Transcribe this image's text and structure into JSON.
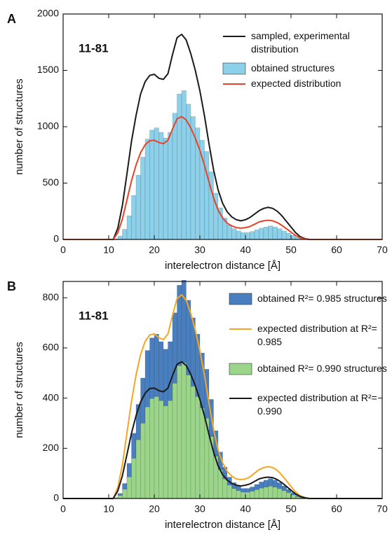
{
  "chart_data": [
    {
      "type": "histogram",
      "panel_label": "A",
      "annotation": "11-81",
      "x_label": "interelectron distance [Å]",
      "y_label": "number of structures",
      "xlim": [
        0,
        70
      ],
      "xticks": [
        0,
        10,
        20,
        30,
        40,
        50,
        60,
        70
      ],
      "ylim": [
        0,
        2000
      ],
      "yticks": [
        0,
        500,
        1000,
        1500,
        2000
      ],
      "bins": [
        11,
        12,
        13,
        14,
        15,
        16,
        17,
        18,
        19,
        20,
        21,
        22,
        23,
        24,
        25,
        26,
        27,
        28,
        29,
        30,
        31,
        32,
        33,
        34,
        35,
        36,
        37,
        38,
        39,
        40,
        41,
        42,
        43,
        44,
        45,
        46,
        47,
        48,
        49,
        50,
        51,
        52,
        53
      ],
      "x": [
        0,
        10,
        11,
        12,
        13,
        14,
        15,
        16,
        17,
        18,
        19,
        20,
        21,
        22,
        23,
        24,
        25,
        26,
        27,
        28,
        29,
        30,
        31,
        32,
        33,
        34,
        35,
        36,
        37,
        38,
        39,
        40,
        41,
        42,
        43,
        44,
        45,
        46,
        47,
        48,
        49,
        50,
        51,
        52,
        53,
        54,
        60,
        70
      ],
      "series": [
        {
          "name": "sampled, experimental distribution",
          "kind": "line",
          "color": "#1a1a1a",
          "values": [
            0,
            0,
            0,
            100,
            300,
            580,
            870,
            1100,
            1290,
            1400,
            1455,
            1465,
            1430,
            1420,
            1470,
            1640,
            1790,
            1820,
            1770,
            1650,
            1500,
            1320,
            1100,
            850,
            620,
            440,
            320,
            245,
            200,
            175,
            165,
            175,
            195,
            225,
            255,
            275,
            285,
            275,
            250,
            210,
            160,
            110,
            60,
            25,
            8,
            0,
            0,
            0
          ]
        },
        {
          "name": "obtained structures",
          "kind": "histogram",
          "color": "#8dd0ea",
          "values": [
            5,
            30,
            90,
            210,
            390,
            570,
            730,
            890,
            970,
            990,
            950,
            900,
            950,
            1120,
            1290,
            1320,
            1200,
            1090,
            990,
            880,
            780,
            600,
            410,
            280,
            190,
            130,
            95,
            75,
            60,
            60,
            70,
            85,
            100,
            110,
            120,
            110,
            95,
            75,
            55,
            35,
            18,
            8
          ]
        },
        {
          "name": "expected distribution",
          "kind": "line",
          "color": "#e8432a",
          "values": [
            0,
            0,
            0,
            60,
            180,
            350,
            520,
            660,
            770,
            840,
            875,
            880,
            860,
            850,
            880,
            980,
            1070,
            1090,
            1060,
            990,
            900,
            790,
            660,
            510,
            370,
            260,
            190,
            145,
            120,
            105,
            100,
            105,
            115,
            135,
            155,
            165,
            170,
            165,
            150,
            125,
            95,
            65,
            35,
            15,
            5,
            0,
            0,
            0
          ]
        }
      ]
    },
    {
      "type": "histogram",
      "panel_label": "B",
      "annotation": "11-81",
      "x_label": "interelectron distance [Å]",
      "y_label": "number of structures",
      "xlim": [
        0,
        70
      ],
      "xticks": [
        0,
        10,
        20,
        30,
        40,
        50,
        60,
        70
      ],
      "ylim": [
        0,
        865
      ],
      "yticks": [
        0,
        200,
        400,
        600,
        800
      ],
      "bins": [
        11,
        12,
        13,
        14,
        15,
        16,
        17,
        18,
        19,
        20,
        21,
        22,
        23,
        24,
        25,
        26,
        27,
        28,
        29,
        30,
        31,
        32,
        33,
        34,
        35,
        36,
        37,
        38,
        39,
        40,
        41,
        42,
        43,
        44,
        45,
        46,
        47,
        48,
        49,
        50,
        51,
        52,
        53
      ],
      "x": [
        0,
        10,
        11,
        12,
        13,
        14,
        15,
        16,
        17,
        18,
        19,
        20,
        21,
        22,
        23,
        24,
        25,
        26,
        27,
        28,
        29,
        30,
        31,
        32,
        33,
        34,
        35,
        36,
        37,
        38,
        39,
        40,
        41,
        42,
        43,
        44,
        45,
        46,
        47,
        48,
        49,
        50,
        51,
        52,
        53,
        54,
        60,
        70
      ],
      "series": [
        {
          "name": "obtained R²= 0.985 structures",
          "kind": "histogram",
          "color": "#4a7fbf",
          "values": [
            3,
            20,
            60,
            140,
            260,
            375,
            480,
            590,
            640,
            655,
            625,
            595,
            625,
            740,
            850,
            870,
            790,
            720,
            655,
            580,
            515,
            395,
            270,
            185,
            125,
            85,
            63,
            50,
            40,
            40,
            46,
            56,
            66,
            73,
            79,
            73,
            63,
            50,
            36,
            23,
            12,
            5
          ]
        },
        {
          "name": "expected distribution at R²= 0.985",
          "kind": "line",
          "color": "#f5a623",
          "values": [
            0,
            0,
            0,
            45,
            134,
            261,
            387,
            492,
            574,
            626,
            652,
            656,
            641,
            633,
            656,
            730,
            797,
            812,
            790,
            738,
            671,
            589,
            492,
            380,
            276,
            194,
            142,
            108,
            89,
            78,
            75,
            78,
            86,
            101,
            115,
            123,
            127,
            123,
            112,
            93,
            71,
            48,
            26,
            11,
            4,
            0,
            0,
            0
          ]
        },
        {
          "name": "obtained R²= 0.990 structures",
          "kind": "histogram",
          "color": "#9ad58a",
          "values": [
            2,
            12,
            37,
            86,
            160,
            234,
            300,
            365,
            398,
            406,
            390,
            369,
            390,
            459,
            529,
            541,
            492,
            447,
            406,
            361,
            320,
            246,
            168,
            115,
            78,
            53,
            39,
            31,
            25,
            25,
            29,
            35,
            41,
            45,
            49,
            45,
            39,
            31,
            23,
            14,
            7,
            3
          ]
        },
        {
          "name": "expected distribution at R²= 0.990",
          "kind": "line",
          "color": "#1a1a1a",
          "values": [
            0,
            0,
            0,
            30,
            90,
            175,
            260,
            330,
            385,
            420,
            438,
            440,
            430,
            425,
            440,
            490,
            535,
            545,
            530,
            495,
            450,
            395,
            330,
            255,
            185,
            130,
            95,
            73,
            60,
            53,
            50,
            53,
            58,
            68,
            78,
            83,
            85,
            83,
            75,
            63,
            48,
            33,
            18,
            8,
            3,
            0,
            0,
            0
          ]
        }
      ]
    }
  ]
}
